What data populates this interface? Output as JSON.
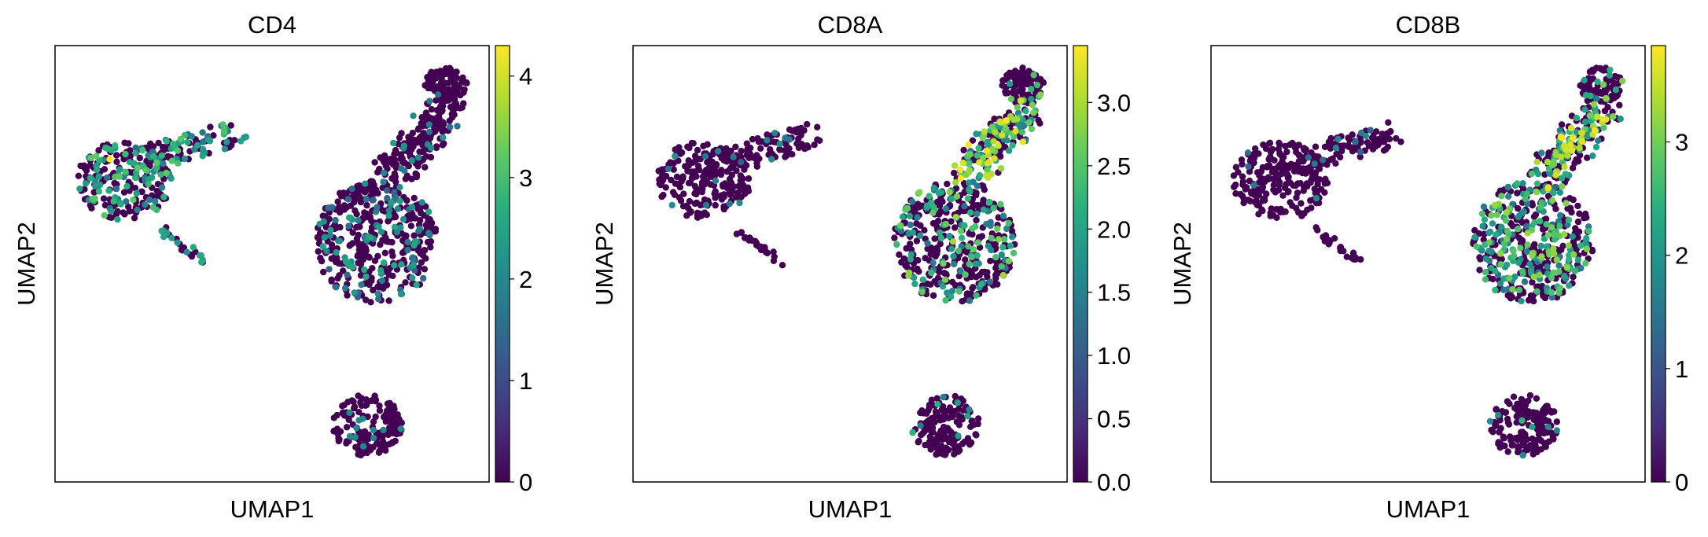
{
  "chart_data": [
    {
      "type": "scatter",
      "title": "CD4",
      "xlabel": "UMAP1",
      "ylabel": "UMAP2",
      "colormap": "viridis",
      "colorbar": {
        "min": 0,
        "max": 4.3,
        "ticks": [
          0,
          1,
          2,
          3,
          4
        ],
        "tick_labels": [
          "0",
          "1",
          "2",
          "3",
          "4"
        ]
      },
      "high_region": "left",
      "seed": 11
    },
    {
      "type": "scatter",
      "title": "CD8A",
      "xlabel": "UMAP1",
      "ylabel": "UMAP2",
      "colormap": "viridis",
      "colorbar": {
        "min": 0,
        "max": 3.45,
        "ticks": [
          0,
          0.5,
          1,
          1.5,
          2,
          2.5,
          3
        ],
        "tick_labels": [
          "0.0",
          "0.5",
          "1.0",
          "1.5",
          "2.0",
          "2.5",
          "3.0"
        ]
      },
      "high_region": "right",
      "seed": 23
    },
    {
      "type": "scatter",
      "title": "CD8B",
      "xlabel": "UMAP1",
      "ylabel": "UMAP2",
      "colormap": "viridis",
      "colorbar": {
        "min": 0,
        "max": 3.85,
        "ticks": [
          0,
          1,
          2,
          3
        ],
        "tick_labels": [
          "0",
          "1",
          "2",
          "3"
        ]
      },
      "high_region": "right",
      "seed": 37
    }
  ]
}
